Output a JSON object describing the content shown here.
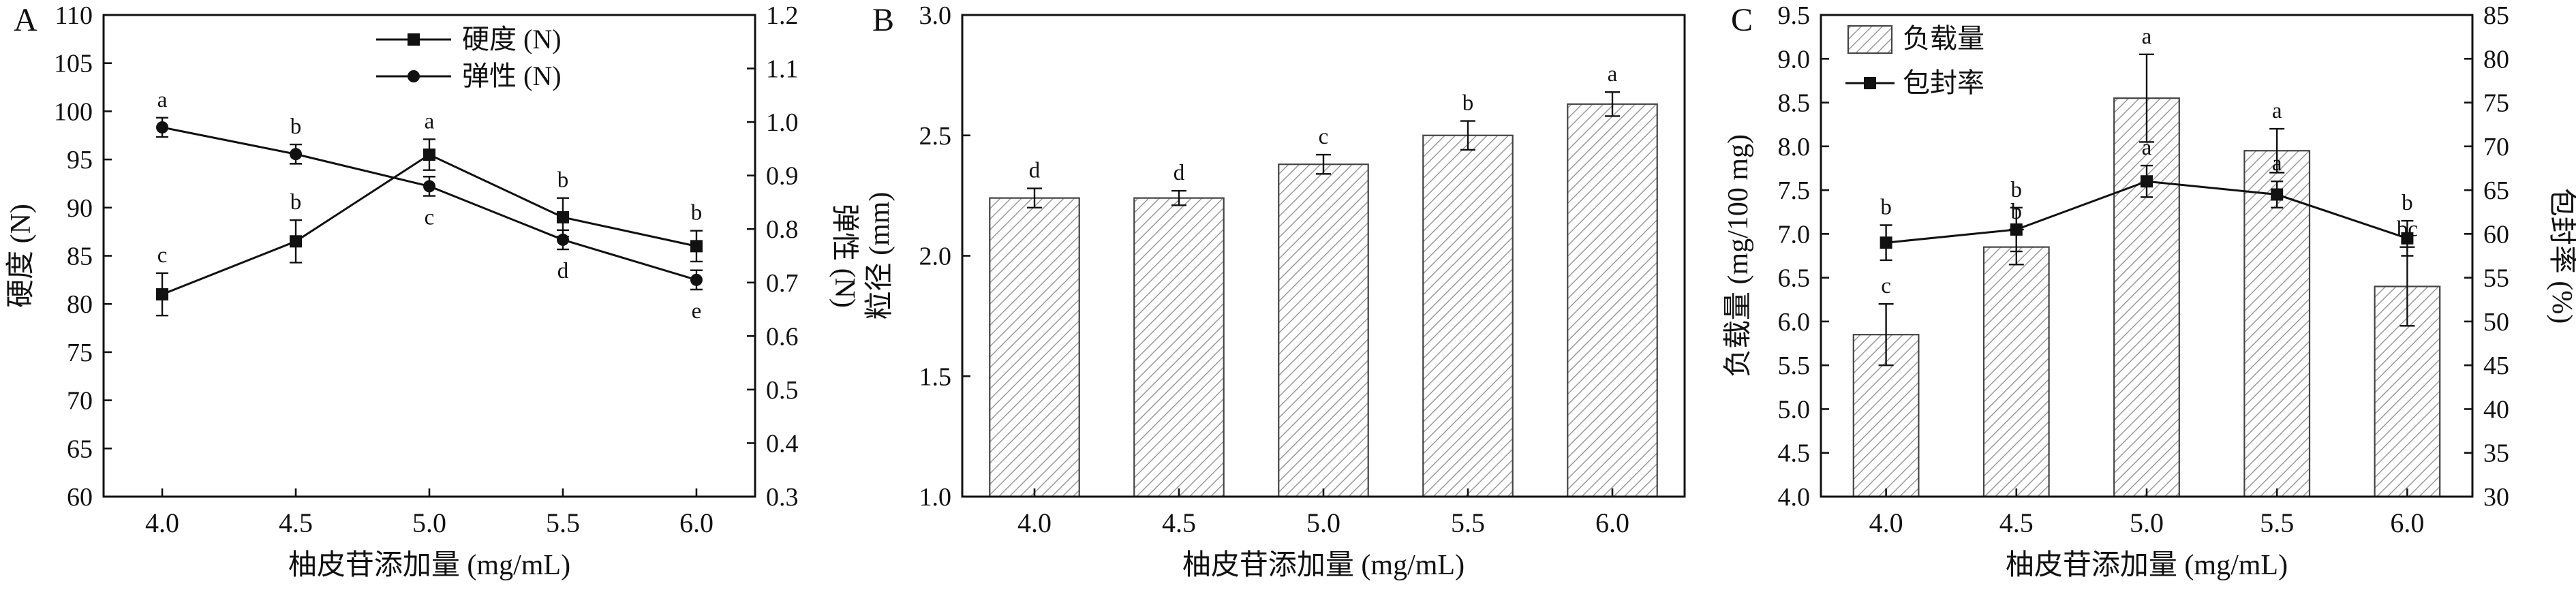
{
  "colors": {
    "ink": "#111111",
    "hatch": "#9a9a9a",
    "bar_border": "#444444",
    "background": "#ffffff"
  },
  "chart_data": [
    {
      "letter": "A",
      "type": "line",
      "x": [
        "4.0",
        "4.5",
        "5.0",
        "5.5",
        "6.0"
      ],
      "xlabel": "柚皮苷添加量 (mg/mL)",
      "left_axis": {
        "label": "硬度 (N)",
        "min": 60,
        "max": 110,
        "step": 5,
        "decimals": 0
      },
      "right_axis": {
        "label": "弹性 (N)",
        "min": 0.3,
        "max": 1.2,
        "step": 0.1,
        "decimals": 1
      },
      "legend_position": "top-inside",
      "grid": false,
      "series": [
        {
          "name": "硬度 (N)",
          "axis": "left",
          "marker": "square",
          "values": [
            81,
            86.5,
            95.5,
            89,
            86
          ],
          "errors": [
            2.2,
            2.2,
            1.6,
            2.0,
            1.6
          ],
          "sig_labels": [
            "c",
            "b",
            "a",
            "b",
            "b"
          ],
          "label_pos": [
            "above",
            "above",
            "above",
            "above",
            "above"
          ]
        },
        {
          "name": "弹性 (N)",
          "axis": "right",
          "marker": "circle",
          "values": [
            0.99,
            0.94,
            0.88,
            0.78,
            0.705
          ],
          "errors": [
            0.018,
            0.018,
            0.018,
            0.018,
            0.018
          ],
          "sig_labels": [
            "a",
            "b",
            "c",
            "d",
            "e"
          ],
          "label_pos": [
            "above",
            "above",
            "below",
            "below",
            "below"
          ]
        }
      ]
    },
    {
      "letter": "B",
      "type": "bar",
      "categories": [
        "4.0",
        "4.5",
        "5.0",
        "5.5",
        "6.0"
      ],
      "xlabel": "柚皮苷添加量 (mg/mL)",
      "ylabel": "粒径 (mm)",
      "y_axis": {
        "min": 1.0,
        "max": 3.0,
        "step": 0.5,
        "decimals": 1
      },
      "values": [
        2.24,
        2.24,
        2.38,
        2.5,
        2.63
      ],
      "errors": [
        0.04,
        0.03,
        0.04,
        0.06,
        0.05
      ],
      "sig_labels": [
        "d",
        "d",
        "c",
        "b",
        "a"
      ],
      "grid": false
    },
    {
      "letter": "C",
      "type": "bar-line",
      "categories": [
        "4.0",
        "4.5",
        "5.0",
        "5.5",
        "6.0"
      ],
      "xlabel": "柚皮苷添加量 (mg/mL)",
      "left_axis": {
        "label": "负载量 (mg/100 mg)",
        "min": 4.0,
        "max": 9.5,
        "step": 0.5,
        "decimals": 1
      },
      "right_axis": {
        "label": "包封率 (%)",
        "min": 30,
        "max": 85,
        "step": 5,
        "decimals": 0
      },
      "legend_position": "top-left-inside",
      "grid": false,
      "bar_series": {
        "name": "负载量",
        "axis": "left",
        "values": [
          5.85,
          6.85,
          8.55,
          7.95,
          6.4
        ],
        "errors": [
          0.35,
          0.2,
          0.5,
          0.25,
          0.45
        ],
        "sig_labels": [
          "c",
          "b",
          "a",
          "a",
          "bc"
        ]
      },
      "line_series": {
        "name": "包封率",
        "axis": "right",
        "marker": "square",
        "values": [
          59,
          60.5,
          66,
          64.5,
          59.5
        ],
        "errors": [
          2,
          2.5,
          1.8,
          1.5,
          2
        ],
        "sig_labels": [
          "b",
          "b",
          "a",
          "a",
          "b"
        ]
      }
    }
  ]
}
